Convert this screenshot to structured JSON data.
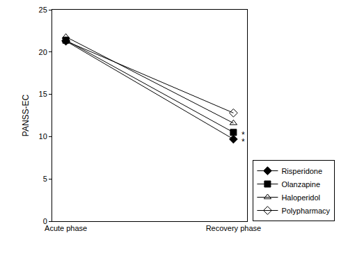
{
  "chart_data": {
    "type": "line",
    "y_label": "PANSS-EC",
    "categories": [
      "Acute phase",
      "Recovery phase"
    ],
    "series": [
      {
        "name": "Risperidone",
        "color": "#000000",
        "marker": "diamond",
        "line_style": "solid",
        "values": [
          21.3,
          9.7
        ]
      },
      {
        "name": "Olanzapine",
        "color": "#000000",
        "marker": "square",
        "line_style": "solid",
        "values": [
          21.4,
          10.5
        ]
      },
      {
        "name": "Haloperidol",
        "color": "#000000",
        "marker": "triangle-up-open",
        "line_style": "solid",
        "values": [
          21.8,
          11.6
        ]
      },
      {
        "name": "Polypharmacy",
        "color": "#000000",
        "marker": "diamond-open",
        "line_style": "solid",
        "values": [
          21.3,
          12.8
        ]
      }
    ],
    "annotations": [
      {
        "text": "*",
        "category": "Recovery phase",
        "y": 10.5
      },
      {
        "text": "*",
        "category": "Recovery phase",
        "y": 9.7
      }
    ],
    "ylim": [
      0,
      25
    ],
    "yticks": [
      0,
      5,
      10,
      15,
      20,
      25
    ],
    "grid": false,
    "legend": "lower right"
  }
}
